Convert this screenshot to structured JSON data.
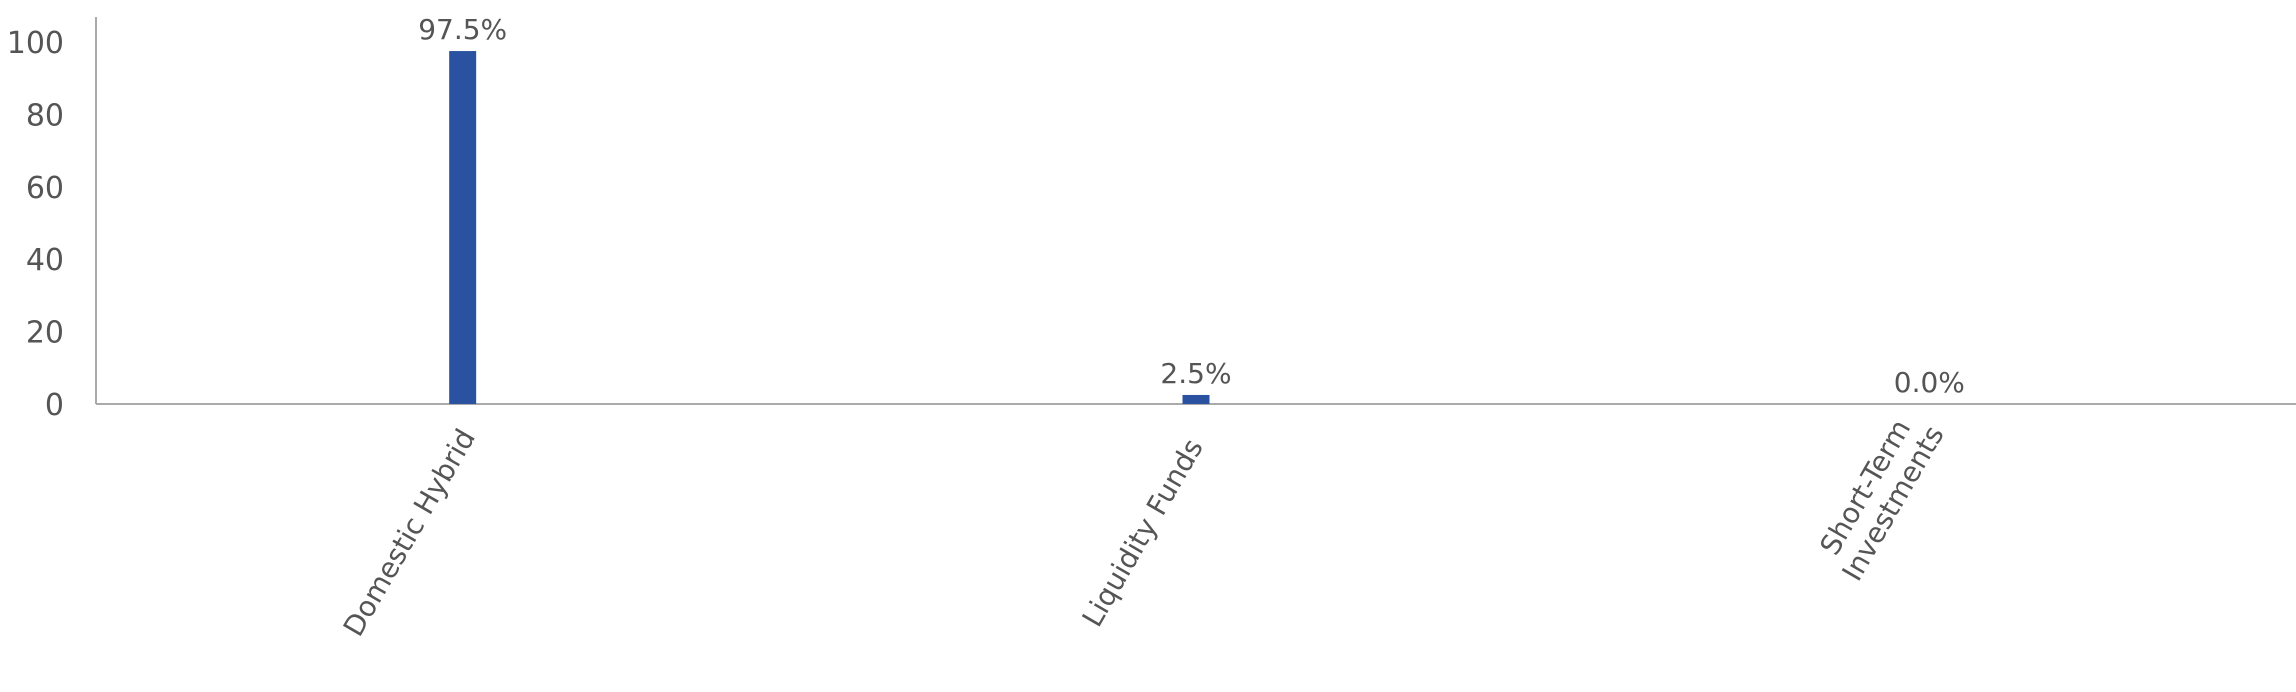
{
  "chart_data": {
    "type": "bar",
    "title": "",
    "xlabel": "",
    "ylabel": "",
    "categories": [
      [
        "Domestic Hybrid"
      ],
      [
        "Liquidity Funds"
      ],
      [
        "Short-Term",
        "Investments"
      ]
    ],
    "values": [
      97.5,
      2.5,
      0.0
    ],
    "data_labels": [
      "97.5%",
      "2.5%",
      "0.0%"
    ],
    "yticks": [
      "0",
      "20",
      "40",
      "60",
      "80",
      "100"
    ],
    "ylim": [
      0,
      107
    ],
    "grid": false,
    "legend": "none",
    "colors": {
      "bar": "#2a52a0",
      "axis": "#aaaaaa",
      "text": "#555555"
    }
  }
}
